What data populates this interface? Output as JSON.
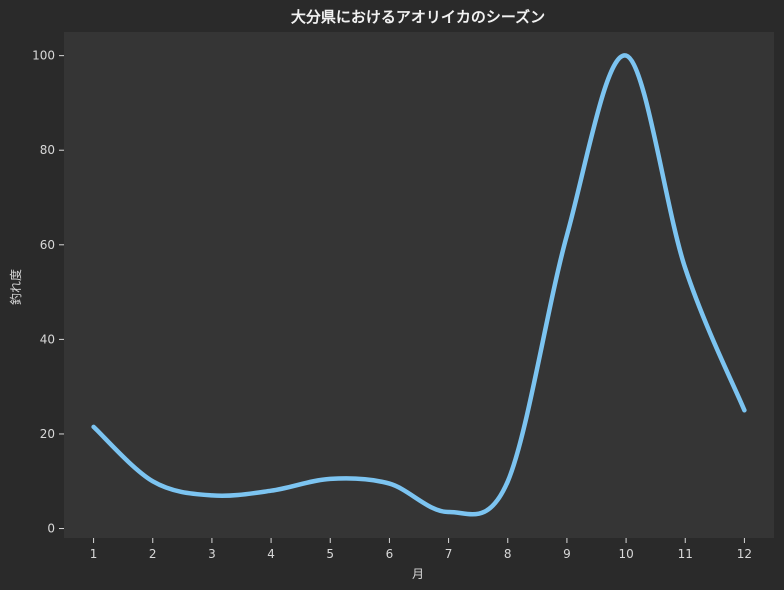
{
  "chart_data": {
    "type": "line",
    "title": "大分県におけるアオリイカのシーズン",
    "xlabel": "月",
    "ylabel": "釣れ度",
    "x": [
      1,
      2,
      3,
      4,
      5,
      6,
      7,
      8,
      9,
      10,
      11,
      12
    ],
    "x_ticks": [
      "1",
      "2",
      "3",
      "4",
      "5",
      "6",
      "7",
      "8",
      "9",
      "10",
      "11",
      "12"
    ],
    "xlim": [
      0.5,
      12.5
    ],
    "ylim": [
      -2,
      105
    ],
    "y_ticks": [
      0,
      20,
      40,
      60,
      80,
      100
    ],
    "grid": false,
    "series": [
      {
        "values": [
          21.5,
          10,
          7,
          8,
          10.5,
          9.5,
          3.5,
          10,
          62,
          100,
          55,
          25
        ],
        "color": "#7cc4f1"
      }
    ],
    "colors": {
      "figure_bg": "#2a2a2a",
      "plot_bg": "#353535",
      "text": "#d8d8d8",
      "title": "#f2f2f2"
    }
  }
}
